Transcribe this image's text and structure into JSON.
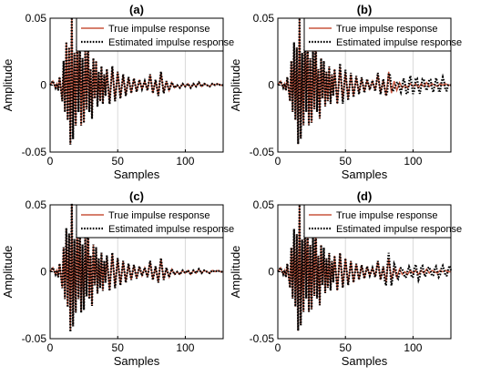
{
  "chart_data": [
    {
      "panel": "(a)",
      "type": "line",
      "title": "(a)",
      "xlabel": "Samples",
      "ylabel": "Amplitude",
      "xlim": [
        0,
        128
      ],
      "ylim": [
        -0.05,
        0.05
      ],
      "xticks": [
        0,
        50,
        100
      ],
      "yticks": [
        -0.05,
        0,
        0.05
      ],
      "grid": "x-only",
      "legend_position": "top-right",
      "series": [
        {
          "name": "True impulse response",
          "color": "#c8553d",
          "style": "solid",
          "variant": "true"
        },
        {
          "name": "Estimated impulse response",
          "color": "#000000",
          "style": "dotted",
          "variant": "est_a"
        }
      ]
    },
    {
      "panel": "(b)",
      "type": "line",
      "title": "(b)",
      "xlabel": "Samples",
      "ylabel": "Amplitude",
      "xlim": [
        0,
        128
      ],
      "ylim": [
        -0.05,
        0.05
      ],
      "xticks": [
        0,
        50,
        100
      ],
      "yticks": [
        -0.05,
        0,
        0.05
      ],
      "grid": "x-only",
      "legend_position": "top-right",
      "series": [
        {
          "name": "True impulse response",
          "color": "#c8553d",
          "style": "solid",
          "variant": "true"
        },
        {
          "name": "Estimated impulse response",
          "color": "#000000",
          "style": "dotted",
          "variant": "est_b"
        }
      ]
    },
    {
      "panel": "(c)",
      "type": "line",
      "title": "(c)",
      "xlabel": "Samples",
      "ylabel": "Amplitude",
      "xlim": [
        0,
        128
      ],
      "ylim": [
        -0.05,
        0.05
      ],
      "xticks": [
        0,
        50,
        100
      ],
      "yticks": [
        -0.05,
        0,
        0.05
      ],
      "grid": "x-only",
      "legend_position": "top-right",
      "series": [
        {
          "name": "True impulse response",
          "color": "#c8553d",
          "style": "solid",
          "variant": "true"
        },
        {
          "name": "Estimated impulse response",
          "color": "#000000",
          "style": "dotted",
          "variant": "est_c"
        }
      ]
    },
    {
      "panel": "(d)",
      "type": "line",
      "title": "(d)",
      "xlabel": "Samples",
      "ylabel": "Amplitude",
      "xlim": [
        0,
        128
      ],
      "ylim": [
        -0.05,
        0.05
      ],
      "xticks": [
        0,
        50,
        100
      ],
      "yticks": [
        -0.05,
        0,
        0.05
      ],
      "grid": "x-only",
      "legend_position": "top-right",
      "series": [
        {
          "name": "True impulse response",
          "color": "#c8553d",
          "style": "solid",
          "variant": "true"
        },
        {
          "name": "Estimated impulse response",
          "color": "#000000",
          "style": "dotted",
          "variant": "est_d"
        }
      ]
    }
  ],
  "true_response": [
    [
      0,
      0.0
    ],
    [
      2,
      0.003
    ],
    [
      4,
      -0.002
    ],
    [
      5,
      0.001
    ],
    [
      6,
      -0.004
    ],
    [
      7,
      0.006
    ],
    [
      8,
      -0.003
    ],
    [
      9,
      -0.012
    ],
    [
      10,
      0.018
    ],
    [
      11,
      -0.02
    ],
    [
      12,
      0.032
    ],
    [
      13,
      -0.026
    ],
    [
      14,
      0.028
    ],
    [
      15,
      -0.044
    ],
    [
      16,
      0.05
    ],
    [
      17,
      -0.04
    ],
    [
      18,
      0.024
    ],
    [
      19,
      -0.03
    ],
    [
      20,
      0.04
    ],
    [
      21,
      -0.02
    ],
    [
      22,
      0.035
    ],
    [
      23,
      -0.03
    ],
    [
      24,
      0.02
    ],
    [
      25,
      -0.028
    ],
    [
      26,
      0.026
    ],
    [
      27,
      -0.018
    ],
    [
      28,
      0.04
    ],
    [
      29,
      -0.02
    ],
    [
      30,
      0.012
    ],
    [
      31,
      -0.025
    ],
    [
      32,
      0.02
    ],
    [
      33,
      -0.01
    ],
    [
      34,
      0.018
    ],
    [
      35,
      -0.016
    ],
    [
      36,
      0.01
    ],
    [
      37,
      -0.012
    ],
    [
      38,
      0.014
    ],
    [
      39,
      -0.014
    ],
    [
      40,
      0.008
    ],
    [
      41,
      -0.008
    ],
    [
      42,
      0.012
    ],
    [
      44,
      -0.014
    ],
    [
      46,
      0.014
    ],
    [
      48,
      -0.012
    ],
    [
      50,
      0.01
    ],
    [
      52,
      -0.01
    ],
    [
      54,
      0.008
    ],
    [
      56,
      -0.008
    ],
    [
      58,
      0.006
    ],
    [
      60,
      -0.006
    ],
    [
      62,
      0.005
    ],
    [
      64,
      -0.005
    ],
    [
      66,
      0.004
    ],
    [
      68,
      -0.003
    ],
    [
      70,
      0.003
    ],
    [
      72,
      -0.004
    ],
    [
      74,
      0.008
    ],
    [
      76,
      -0.006
    ],
    [
      78,
      0.004
    ],
    [
      80,
      -0.008
    ],
    [
      82,
      0.01
    ],
    [
      84,
      -0.006
    ],
    [
      86,
      0.003
    ],
    [
      88,
      -0.004
    ],
    [
      90,
      0.002
    ],
    [
      92,
      -0.002
    ],
    [
      94,
      0.0
    ],
    [
      96,
      -0.002
    ],
    [
      98,
      0.001
    ],
    [
      100,
      -0.001
    ],
    [
      102,
      0.001
    ],
    [
      104,
      -0.002
    ],
    [
      106,
      0.001
    ],
    [
      108,
      -0.001
    ],
    [
      110,
      0.002
    ],
    [
      112,
      -0.001
    ],
    [
      114,
      0.001
    ],
    [
      116,
      0.0
    ],
    [
      118,
      -0.001
    ],
    [
      120,
      0.001
    ],
    [
      122,
      0.0
    ],
    [
      124,
      0.001
    ],
    [
      126,
      0.0
    ],
    [
      128,
      0.0
    ]
  ]
}
